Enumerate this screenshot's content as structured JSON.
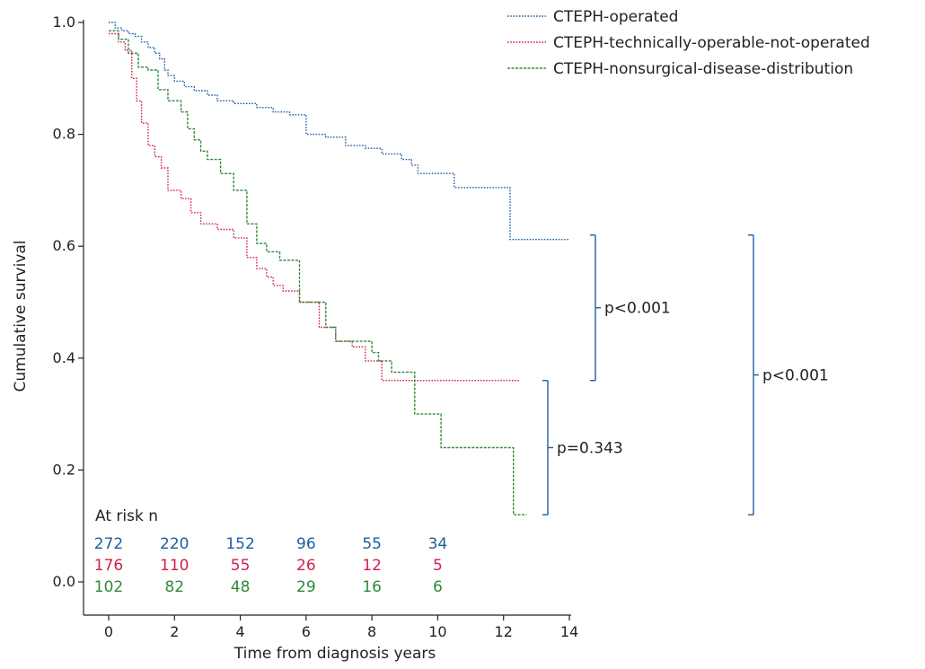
{
  "chart_data": {
    "type": "line",
    "title": "",
    "xlabel": "Time from diagnosis years",
    "ylabel": "Cumulative survival",
    "xlim": [
      0,
      14
    ],
    "ylim": [
      0.0,
      1.0
    ],
    "x_ticks": [
      0,
      2,
      4,
      6,
      8,
      10,
      12,
      14
    ],
    "x_tick_labels": [
      "0",
      "2",
      "4",
      "6",
      "8",
      "10",
      "12",
      "14"
    ],
    "y_ticks": [
      0.0,
      0.2,
      0.4,
      0.6,
      0.8,
      1.0
    ],
    "y_tick_labels": [
      "0.0",
      "0.2",
      "0.4",
      "0.6",
      "0.8",
      "1.0"
    ],
    "grid": false,
    "legend_position": "top-right",
    "series": [
      {
        "name": "CTEPH-operated",
        "color": "#1f5fa0",
        "dash": "dotted",
        "step_points": [
          [
            0,
            1.0
          ],
          [
            0.2,
            0.99
          ],
          [
            0.4,
            0.985
          ],
          [
            0.6,
            0.98
          ],
          [
            0.8,
            0.975
          ],
          [
            1.0,
            0.965
          ],
          [
            1.2,
            0.955
          ],
          [
            1.4,
            0.945
          ],
          [
            1.55,
            0.935
          ],
          [
            1.7,
            0.915
          ],
          [
            1.8,
            0.905
          ],
          [
            2.0,
            0.895
          ],
          [
            2.3,
            0.885
          ],
          [
            2.6,
            0.878
          ],
          [
            3.0,
            0.87
          ],
          [
            3.3,
            0.86
          ],
          [
            3.8,
            0.855
          ],
          [
            4.5,
            0.848
          ],
          [
            5.0,
            0.84
          ],
          [
            5.5,
            0.835
          ],
          [
            6.0,
            0.8
          ],
          [
            6.6,
            0.795
          ],
          [
            7.2,
            0.78
          ],
          [
            7.8,
            0.775
          ],
          [
            8.3,
            0.765
          ],
          [
            8.9,
            0.755
          ],
          [
            9.2,
            0.745
          ],
          [
            9.4,
            0.73
          ],
          [
            10.5,
            0.705
          ],
          [
            11.0,
            0.705
          ],
          [
            12.2,
            0.612
          ],
          [
            14.0,
            0.612
          ]
        ]
      },
      {
        "name": "CTEPH-technically-operable-not-operated",
        "color": "#d21f4b",
        "dash": "dotted",
        "step_points": [
          [
            0,
            0.98
          ],
          [
            0.3,
            0.965
          ],
          [
            0.5,
            0.95
          ],
          [
            0.7,
            0.9
          ],
          [
            0.85,
            0.86
          ],
          [
            1.0,
            0.82
          ],
          [
            1.2,
            0.78
          ],
          [
            1.4,
            0.76
          ],
          [
            1.6,
            0.74
          ],
          [
            1.8,
            0.7
          ],
          [
            2.2,
            0.685
          ],
          [
            2.5,
            0.66
          ],
          [
            2.8,
            0.64
          ],
          [
            3.3,
            0.63
          ],
          [
            3.8,
            0.615
          ],
          [
            4.2,
            0.58
          ],
          [
            4.5,
            0.56
          ],
          [
            4.8,
            0.545
          ],
          [
            5.0,
            0.53
          ],
          [
            5.3,
            0.52
          ],
          [
            5.8,
            0.5
          ],
          [
            6.4,
            0.455
          ],
          [
            6.9,
            0.43
          ],
          [
            7.4,
            0.42
          ],
          [
            7.8,
            0.395
          ],
          [
            8.3,
            0.36
          ],
          [
            12.5,
            0.36
          ]
        ]
      },
      {
        "name": "CTEPH-nonsurgical-disease-distribution",
        "color": "#2e8b3a",
        "dash": "dashed",
        "step_points": [
          [
            0,
            0.985
          ],
          [
            0.3,
            0.97
          ],
          [
            0.6,
            0.945
          ],
          [
            0.9,
            0.92
          ],
          [
            1.2,
            0.915
          ],
          [
            1.5,
            0.88
          ],
          [
            1.8,
            0.86
          ],
          [
            2.2,
            0.84
          ],
          [
            2.4,
            0.81
          ],
          [
            2.6,
            0.79
          ],
          [
            2.8,
            0.77
          ],
          [
            3.0,
            0.755
          ],
          [
            3.4,
            0.73
          ],
          [
            3.8,
            0.7
          ],
          [
            4.2,
            0.64
          ],
          [
            4.5,
            0.605
          ],
          [
            4.8,
            0.59
          ],
          [
            5.2,
            0.575
          ],
          [
            5.8,
            0.5
          ],
          [
            6.6,
            0.455
          ],
          [
            6.9,
            0.43
          ],
          [
            8.0,
            0.41
          ],
          [
            8.2,
            0.395
          ],
          [
            8.6,
            0.375
          ],
          [
            9.3,
            0.3
          ],
          [
            10.1,
            0.24
          ],
          [
            12.3,
            0.12
          ],
          [
            12.7,
            0.12
          ]
        ]
      }
    ],
    "at_risk": {
      "title": "At risk n",
      "times": [
        0,
        2,
        4,
        6,
        8,
        10
      ],
      "rows": [
        {
          "series": "CTEPH-operated",
          "color": "#1f5fa0",
          "values": [
            "272",
            "220",
            "152",
            "96",
            "55",
            "34"
          ]
        },
        {
          "series": "CTEPH-technically-operable-not-operated",
          "color": "#d21f4b",
          "values": [
            "176",
            "110",
            "55",
            "26",
            "12",
            "5"
          ]
        },
        {
          "series": "CTEPH-nonsurgical-disease-distribution",
          "color": "#2e8b3a",
          "values": [
            "102",
            "82",
            "48",
            "29",
            "16",
            "6"
          ]
        }
      ]
    },
    "comparisons": [
      {
        "label": "p<0.001",
        "y_range": [
          0.36,
          0.62
        ]
      },
      {
        "label": "p=0.343",
        "y_range": [
          0.12,
          0.36
        ]
      },
      {
        "label": "p<0.001",
        "y_range": [
          0.12,
          0.62
        ]
      }
    ]
  }
}
